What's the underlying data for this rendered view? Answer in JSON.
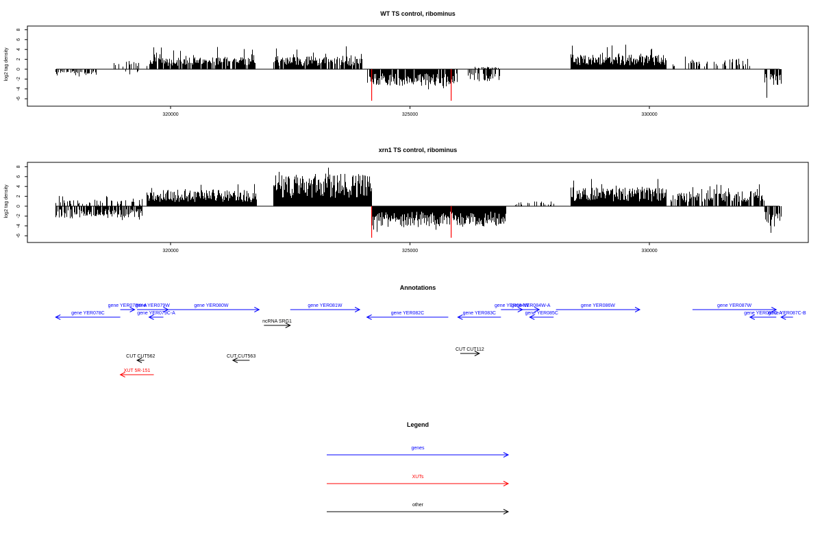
{
  "colors": {
    "axis": "#000000",
    "bar": "#000000",
    "highlight": "#ff0000",
    "gene": "#0000ff",
    "xut": "#ff0000",
    "other": "#000000"
  },
  "chart_data": [
    {
      "type": "bar",
      "title": "WT TS control, ribominus",
      "xlabel": "",
      "ylabel": "log2 tag density",
      "xlim": [
        317600,
        333200
      ],
      "ylim": [
        -6.5,
        8.5
      ],
      "x_ticks": [
        320000,
        325000,
        330000
      ],
      "y_ticks": [
        8,
        6,
        4,
        2,
        0,
        -2,
        -4,
        -6
      ],
      "highlight_x": [
        324200,
        325860
      ],
      "profile": [
        {
          "start": 317600,
          "end": 318450,
          "sign": -1,
          "base": 1.0,
          "peak": 2.5,
          "density": 0.5
        },
        {
          "start": 318800,
          "end": 319350,
          "sign": 1,
          "base": 1.4,
          "peak": 3.0,
          "density": 0.3
        },
        {
          "start": 319050,
          "end": 319350,
          "sign": -1,
          "base": 0.8,
          "peak": 2.0,
          "density": 0.2
        },
        {
          "start": 319500,
          "end": 321800,
          "sign": 1,
          "base": 2.0,
          "peak": 4.5,
          "density": 0.9
        },
        {
          "start": 322150,
          "end": 324000,
          "sign": 1,
          "base": 2.2,
          "peak": 4.8,
          "density": 0.9
        },
        {
          "start": 324100,
          "end": 325980,
          "sign": -1,
          "base": 2.8,
          "peak": 4.5,
          "density": 0.9
        },
        {
          "start": 326200,
          "end": 326950,
          "sign": -1,
          "base": 2.0,
          "peak": 3.0,
          "density": 0.6
        },
        {
          "start": 326200,
          "end": 326950,
          "sign": 1,
          "base": 0.4,
          "peak": 1.0,
          "density": 0.3
        },
        {
          "start": 328350,
          "end": 330350,
          "sign": 1,
          "base": 2.5,
          "peak": 5.5,
          "density": 1.0
        },
        {
          "start": 330450,
          "end": 332100,
          "sign": 1,
          "base": 1.8,
          "peak": 3.0,
          "density": 0.4
        },
        {
          "start": 332400,
          "end": 332750,
          "sign": -1,
          "base": 3.0,
          "peak": 5.8,
          "density": 0.7
        }
      ]
    },
    {
      "type": "bar",
      "title": "xrn1 TS control, ribominus",
      "xlabel": "",
      "ylabel": "log2 tag density",
      "xlim": [
        317600,
        333200
      ],
      "ylim": [
        -6.5,
        8.5
      ],
      "x_ticks": [
        320000,
        325000,
        330000
      ],
      "y_ticks": [
        8,
        6,
        4,
        2,
        0,
        -2,
        -4,
        -6
      ],
      "highlight_x": [
        324200,
        325860
      ],
      "profile": [
        {
          "start": 317600,
          "end": 319400,
          "sign": -1,
          "base": 2.0,
          "peak": 3.5,
          "density": 0.8
        },
        {
          "start": 317600,
          "end": 319400,
          "sign": 1,
          "base": 1.0,
          "peak": 2.5,
          "density": 0.4
        },
        {
          "start": 319500,
          "end": 321800,
          "sign": 1,
          "base": 2.8,
          "peak": 4.8,
          "density": 1.0
        },
        {
          "start": 322150,
          "end": 324200,
          "sign": 1,
          "base": 5.5,
          "peak": 7.9,
          "density": 1.0
        },
        {
          "start": 324200,
          "end": 327000,
          "sign": -1,
          "base": 3.5,
          "peak": 5.2,
          "density": 1.0
        },
        {
          "start": 327200,
          "end": 328000,
          "sign": 1,
          "base": 0.8,
          "peak": 1.8,
          "density": 0.3
        },
        {
          "start": 328350,
          "end": 330350,
          "sign": 1,
          "base": 3.2,
          "peak": 5.5,
          "density": 1.0
        },
        {
          "start": 330450,
          "end": 332400,
          "sign": 1,
          "base": 2.5,
          "peak": 5.0,
          "density": 0.7
        },
        {
          "start": 332400,
          "end": 332750,
          "sign": -1,
          "base": 3.5,
          "peak": 6.0,
          "density": 0.8
        }
      ]
    }
  ],
  "annotations": {
    "title": "Annotations",
    "features": [
      {
        "label": "gene YER078C",
        "type": "gene",
        "strand": "-",
        "start": 317600,
        "end": 318950,
        "row": 1
      },
      {
        "label": "gene YER078W-A",
        "type": "gene",
        "strand": "+",
        "start": 318950,
        "end": 319250,
        "row": 0
      },
      {
        "label": "gene YER079W",
        "type": "gene",
        "strand": "+",
        "start": 319300,
        "end": 319950,
        "row": 0
      },
      {
        "label": "gene YER079C-A",
        "type": "gene",
        "strand": "-",
        "start": 319550,
        "end": 319850,
        "row": 1
      },
      {
        "label": "gene YER080W",
        "type": "gene",
        "strand": "+",
        "start": 319850,
        "end": 321850,
        "row": 0
      },
      {
        "label": "gene YER081W",
        "type": "gene",
        "strand": "+",
        "start": 322500,
        "end": 323950,
        "row": 0
      },
      {
        "label": "gene YER082C",
        "type": "gene",
        "strand": "-",
        "start": 324100,
        "end": 325800,
        "row": 1
      },
      {
        "label": "gene YER083C",
        "type": "gene",
        "strand": "-",
        "start": 326000,
        "end": 326900,
        "row": 1
      },
      {
        "label": "gene YER084W",
        "type": "gene",
        "strand": "+",
        "start": 326900,
        "end": 327350,
        "row": 0
      },
      {
        "label": "gene YER084W-A",
        "type": "gene",
        "strand": "+",
        "start": 327350,
        "end": 327700,
        "row": 0
      },
      {
        "label": "gene YER085C",
        "type": "gene",
        "strand": "-",
        "start": 327500,
        "end": 328000,
        "row": 1
      },
      {
        "label": "gene YER086W",
        "type": "gene",
        "strand": "+",
        "start": 328050,
        "end": 329800,
        "row": 0
      },
      {
        "label": "gene YER087W",
        "type": "gene",
        "strand": "+",
        "start": 330900,
        "end": 332650,
        "row": 0
      },
      {
        "label": "gene YER087C-A",
        "type": "gene",
        "strand": "-",
        "start": 332100,
        "end": 332650,
        "row": 1
      },
      {
        "label": "gene YER087C-B",
        "type": "gene",
        "strand": "-",
        "start": 332750,
        "end": 333000,
        "row": 1
      },
      {
        "label": "ncRNA SRG1",
        "type": "other",
        "strand": "+",
        "start": 321950,
        "end": 322500,
        "row": 2
      },
      {
        "label": "CUT CUT562",
        "type": "other",
        "strand": "-",
        "start": 319300,
        "end": 319450,
        "row": 3
      },
      {
        "label": "CUT CUT563",
        "type": "other",
        "strand": "-",
        "start": 321300,
        "end": 321650,
        "row": 3
      },
      {
        "label": "CUT CUT112",
        "type": "other",
        "strand": "+",
        "start": 326050,
        "end": 326450,
        "row": 4
      },
      {
        "label": "XUT 5R-151",
        "type": "xut",
        "strand": "-",
        "start": 318950,
        "end": 319650,
        "row": 5
      }
    ]
  },
  "legend": {
    "title": "Legend",
    "items": [
      {
        "label": "genes",
        "type": "gene"
      },
      {
        "label": "XUTs",
        "type": "xut"
      },
      {
        "label": "other",
        "type": "other"
      }
    ]
  }
}
